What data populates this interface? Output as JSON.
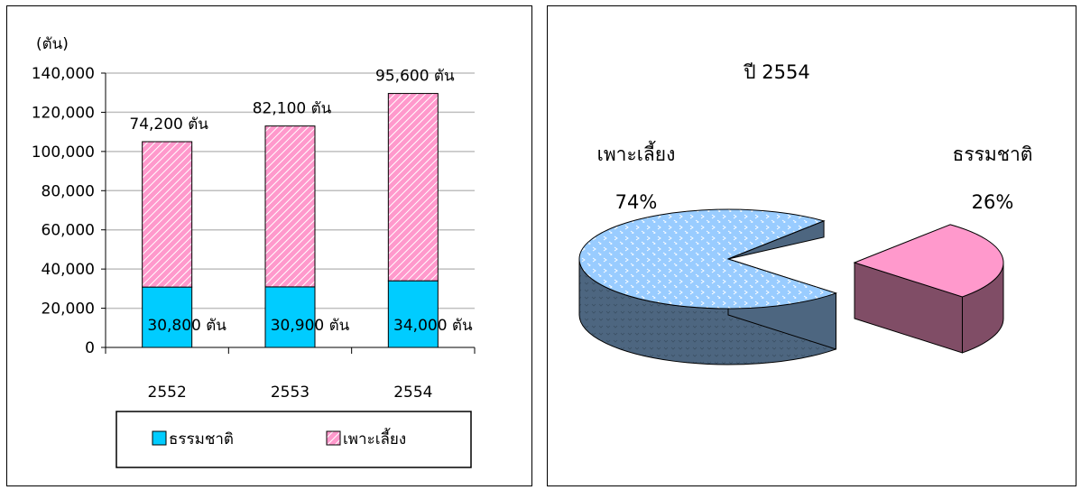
{
  "chart_data": [
    {
      "type": "bar",
      "stacked": true,
      "unit_label": "(ตัน)",
      "categories": [
        "2552",
        "2553",
        "2554"
      ],
      "ylim": [
        0,
        140000
      ],
      "yticks": [
        "0",
        "20,000",
        "40,000",
        "60,000",
        "80,000",
        "100,000",
        "120,000",
        "140,000"
      ],
      "grid": true,
      "legend_position": "bottom",
      "series": [
        {
          "name": "ธรรมชาติ",
          "values": [
            30800,
            30900,
            34000
          ],
          "labels": [
            "30,800 ตัน",
            "30,900 ตัน",
            "34,000 ตัน"
          ],
          "color": "#00ccff"
        },
        {
          "name": "เพาะเลี้ยง",
          "values": [
            74200,
            82100,
            95600
          ],
          "labels": [
            "74,200 ตัน",
            "82,100 ตัน",
            "95,600 ตัน"
          ],
          "color": "#ff99cc"
        }
      ]
    },
    {
      "type": "pie",
      "title": "ปี 2554",
      "slices": [
        {
          "name": "เพาะเลี้ยง",
          "value": 74,
          "label": "74%",
          "top_color": "#99ccff",
          "side_color": "#4d6680"
        },
        {
          "name": "ธรรมชาติ",
          "value": 26,
          "label": "26%",
          "top_color": "#ff99cc",
          "side_color": "#804d66"
        }
      ]
    }
  ]
}
